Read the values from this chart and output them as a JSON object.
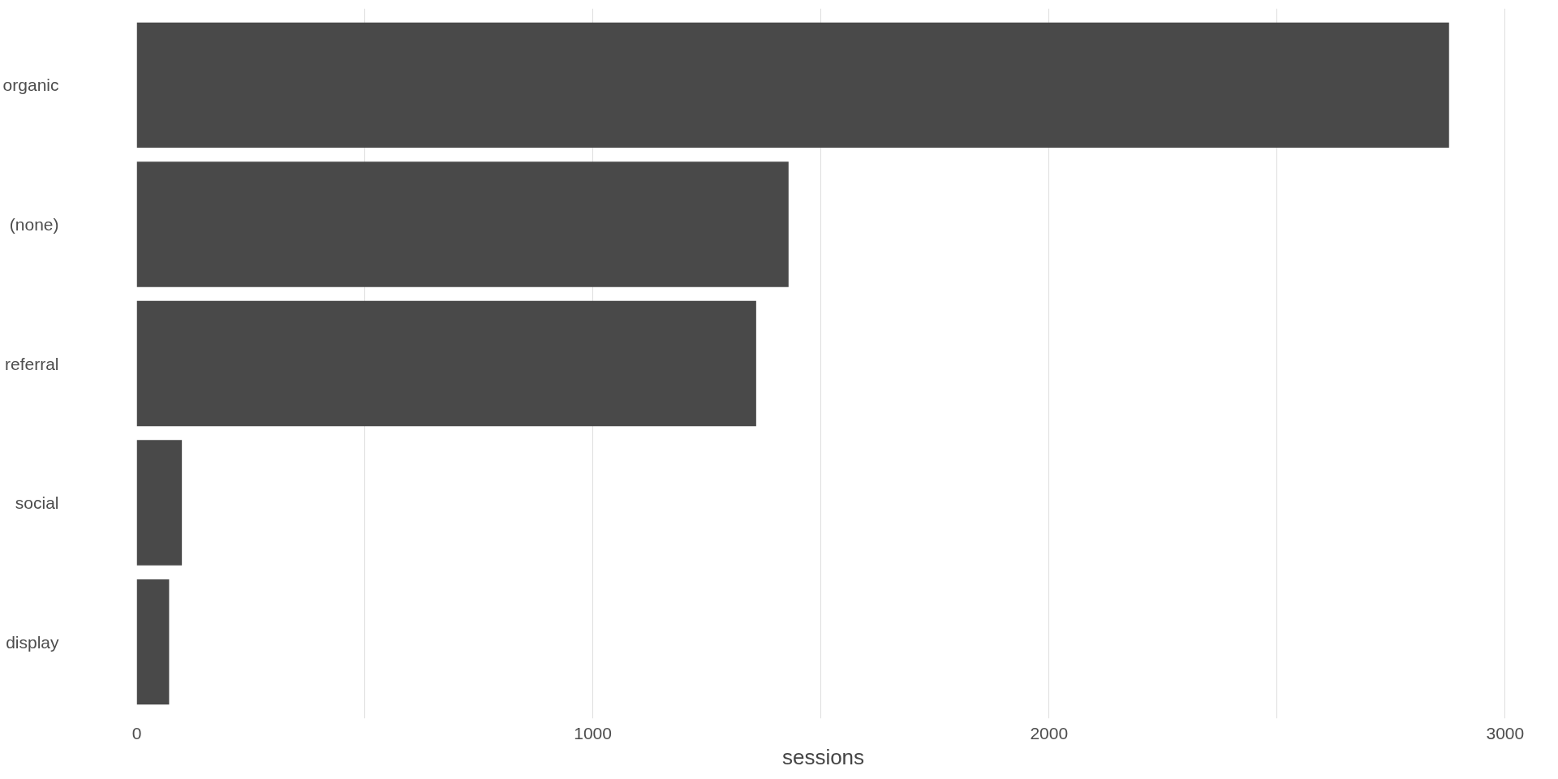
{
  "chart_data": {
    "type": "bar",
    "orientation": "horizontal",
    "xlabel": "sessions",
    "categories": [
      "organic",
      "(none)",
      "referral",
      "social",
      "display"
    ],
    "values": [
      2877,
      1429,
      1358,
      99,
      71
    ],
    "color": "#494949",
    "xlim": [
      0,
      3010
    ],
    "xticks": [
      0,
      {
        "value": 500,
        "label": null
      },
      1000,
      {
        "value": 1500,
        "label": null
      },
      2000,
      {
        "value": 2500,
        "label": null
      },
      3000
    ],
    "grid": "x"
  }
}
